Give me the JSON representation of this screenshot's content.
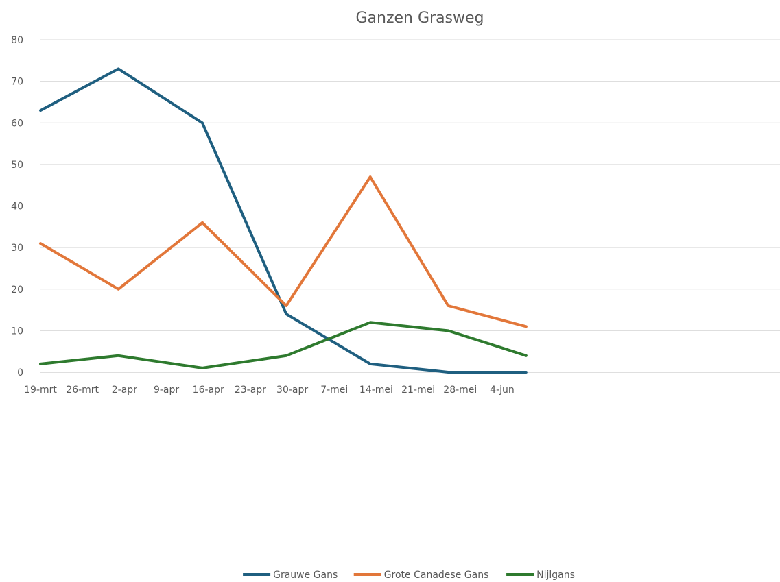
{
  "chart_data": {
    "type": "line",
    "title": "Ganzen Grasweg",
    "xlabel": "",
    "ylabel": "",
    "x_ticks": [
      "19-mrt",
      "26-mrt",
      "2-apr",
      "9-apr",
      "16-apr",
      "23-apr",
      "30-apr",
      "7-mei",
      "14-mei",
      "21-mei",
      "28-mei",
      "4-jun"
    ],
    "ylim": [
      0,
      80
    ],
    "y_ticks": [
      0,
      10,
      20,
      30,
      40,
      50,
      60,
      70,
      80
    ],
    "grid": true,
    "legend_position": "bottom",
    "series": [
      {
        "name": "Grauwe Gans",
        "color": "#1f5f80",
        "points": [
          {
            "x": "19-mrt",
            "y": 63
          },
          {
            "x": "1-apr",
            "y": 73
          },
          {
            "x": "15-apr",
            "y": 60
          },
          {
            "x": "29-apr",
            "y": 14
          },
          {
            "x": "13-mei",
            "y": 2
          },
          {
            "x": "26-mei",
            "y": 0
          },
          {
            "x": "8-jun",
            "y": 0
          }
        ]
      },
      {
        "name": "Grote Canadese Gans",
        "color": "#e2773a",
        "points": [
          {
            "x": "19-mrt",
            "y": 31
          },
          {
            "x": "1-apr",
            "y": 20
          },
          {
            "x": "15-apr",
            "y": 36
          },
          {
            "x": "29-apr",
            "y": 16
          },
          {
            "x": "13-mei",
            "y": 47
          },
          {
            "x": "26-mei",
            "y": 16
          },
          {
            "x": "8-jun",
            "y": 11
          }
        ]
      },
      {
        "name": "Nijlgans",
        "color": "#2e7a2e",
        "points": [
          {
            "x": "19-mrt",
            "y": 2
          },
          {
            "x": "1-apr",
            "y": 4
          },
          {
            "x": "15-apr",
            "y": 1
          },
          {
            "x": "29-apr",
            "y": 4
          },
          {
            "x": "13-mei",
            "y": 12
          },
          {
            "x": "26-mei",
            "y": 10
          },
          {
            "x": "8-jun",
            "y": 4
          }
        ]
      }
    ]
  }
}
